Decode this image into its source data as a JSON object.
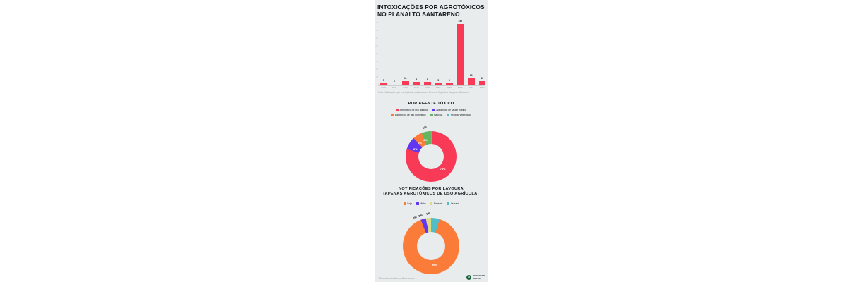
{
  "colors": {
    "strip_bg": "#e8eced",
    "red": "#f93a57",
    "purple": "#6137f1",
    "orange": "#fb7c39",
    "green": "#64b461",
    "teal": "#50bdc8",
    "yellow": "#dcd987",
    "text_dark": "#15181a",
    "text_gray": "#959da0",
    "tick_faint": "#c6cdce"
  },
  "header": {
    "title_line1": "INTOXICAÇÕES POR AGROTÓXICOS",
    "title_line2": "NO PLANALTO SANTARENO"
  },
  "chart_data": [
    {
      "id": "intoxicacoes-por-ano",
      "type": "bar",
      "categories": [
        "2016",
        "2017",
        "2018",
        "2019",
        "2020",
        "2021",
        "2022",
        "2023",
        "2024",
        "2025"
      ],
      "values": [
        5,
        1,
        11,
        8,
        8,
        5,
        6,
        159,
        19,
        11
      ],
      "bar_color": "red",
      "ylim": [
        0,
        160
      ],
      "ytick_step": 20,
      "grid": false,
      "note": "Nota: Notificações por município de residência em Belterra, Mojuí dos Campos e Santarém"
    },
    {
      "id": "por-agente-toxico",
      "type": "pie",
      "title": "POR AGENTE TÓXICO",
      "slices": [
        {
          "name": "Agrotóxico de uso agrícola",
          "pct": 78,
          "color": "red"
        },
        {
          "name": "Agrotóxico de saúde pública",
          "pct": 8,
          "color": "purple"
        },
        {
          "name": "Agrotóxico de uso doméstico",
          "pct": 6,
          "color": "orange"
        },
        {
          "name": "Raticida",
          "pct": 6,
          "color": "green"
        },
        {
          "name": "Produto veterinário",
          "pct": 1,
          "color": "teal"
        }
      ],
      "draw_order": [
        4,
        0,
        1,
        2,
        3
      ],
      "legend_rows": [
        [
          0,
          1
        ],
        [
          2,
          3,
          4
        ]
      ],
      "legend_position": "top"
    },
    {
      "id": "notificacoes-por-lavoura",
      "type": "pie",
      "title_line1": "NOTIFICAÇÕES POR LAVOURA",
      "title_line2": "(APENAS AGROTÓXICOS DE USO AGRÍCOLA)",
      "slices": [
        {
          "name": "Soja",
          "pct": 90,
          "color": "orange"
        },
        {
          "name": "Milho",
          "pct": 3,
          "color": "purple"
        },
        {
          "name": "Pimenta",
          "pct": 3,
          "color": "yellow"
        },
        {
          "name": "Outras*",
          "pct": 5,
          "color": "teal"
        }
      ],
      "draw_order": [
        3,
        0,
        1,
        2
      ],
      "legend_rows": [
        [
          0,
          1,
          2,
          3
        ]
      ],
      "legend_position": "top"
    }
  ],
  "footer": {
    "note": "*Citronela, mandioca, milho e outras",
    "brand_line1": "REPÓRTER",
    "brand_line2": "BRASIL"
  }
}
